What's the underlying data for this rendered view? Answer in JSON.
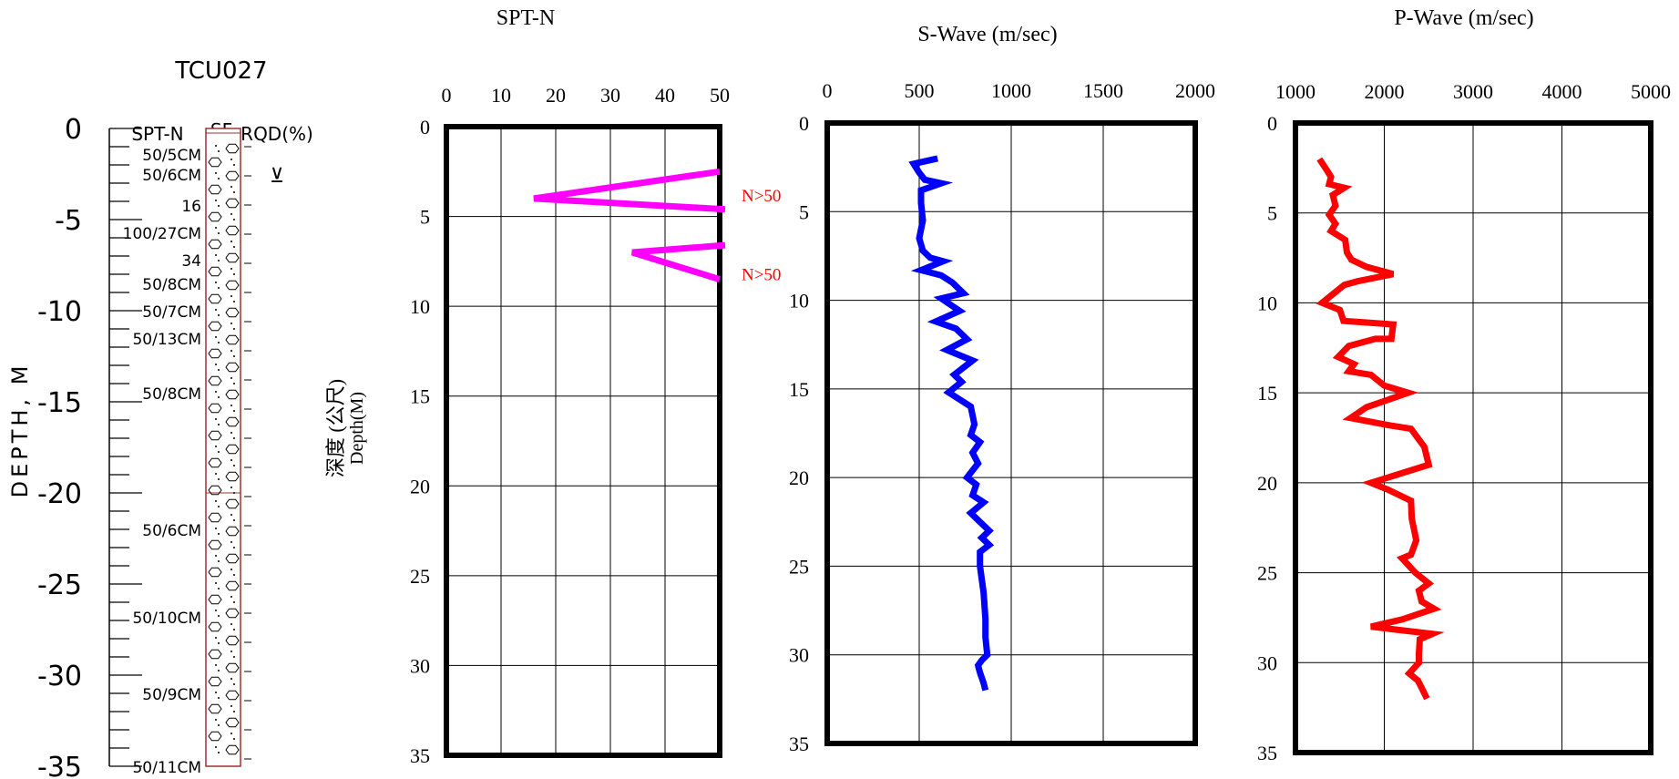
{
  "borehole": {
    "title": "TCU027",
    "depth_axis_label": "DEPTH, M",
    "depth_ticks": [
      "0",
      "-5",
      "-10",
      "-15",
      "-20",
      "-25",
      "-30",
      "-35"
    ],
    "column_headers": {
      "spt": "SPT-N",
      "sf": "SF",
      "rqd": "RQD(%)"
    },
    "water_table_symbol": "⊻",
    "spt_labels": [
      {
        "depth": 1.4,
        "text": "50/5CM"
      },
      {
        "depth": 2.5,
        "text": "50/6CM"
      },
      {
        "depth": 4.2,
        "text": "16"
      },
      {
        "depth": 5.7,
        "text": "100/27CM"
      },
      {
        "depth": 7.2,
        "text": "34"
      },
      {
        "depth": 8.5,
        "text": "50/8CM"
      },
      {
        "depth": 10.0,
        "text": "50/7CM"
      },
      {
        "depth": 11.5,
        "text": "50/13CM"
      },
      {
        "depth": 14.5,
        "text": "50/8CM"
      },
      {
        "depth": 22.0,
        "text": "50/6CM"
      },
      {
        "depth": 26.8,
        "text": "50/10CM"
      },
      {
        "depth": 31.0,
        "text": "50/9CM"
      },
      {
        "depth": 35.0,
        "text": "50/11CM"
      }
    ],
    "colors": {
      "column_border": "#a03030"
    }
  },
  "shared_depth_label": {
    "line1": "深度 (公尺)",
    "line2": "Depth(M)"
  },
  "chart_data": [
    {
      "type": "line",
      "title": "SPT-N",
      "xlim": [
        0,
        50
      ],
      "ylim": [
        0,
        35
      ],
      "x_ticks": [
        0,
        10,
        20,
        30,
        40,
        50
      ],
      "y_ticks": [
        0,
        5,
        10,
        15,
        20,
        25,
        30,
        35
      ],
      "grid": true,
      "series": [
        {
          "color": "#ff00ff",
          "points": [
            [
              50,
              2.5
            ],
            [
              16,
              4.0
            ],
            [
              51,
              4.6
            ]
          ]
        },
        {
          "color": "#ff00ff",
          "points": [
            [
              51,
              6.6
            ],
            [
              34,
              7.0
            ],
            [
              50,
              8.5
            ]
          ]
        }
      ],
      "annotations": [
        {
          "text": "N>50",
          "x": 54,
          "y": 3.8,
          "color": "#ff0000"
        },
        {
          "text": "N>50",
          "x": 54,
          "y": 8.2,
          "color": "#ff0000"
        }
      ]
    },
    {
      "type": "line",
      "title": "S-Wave (m/sec)",
      "xlim": [
        0,
        2000
      ],
      "ylim": [
        0,
        35
      ],
      "x_ticks": [
        0,
        500,
        1000,
        1500,
        2000
      ],
      "y_ticks": [
        0,
        5,
        10,
        15,
        20,
        25,
        30,
        35
      ],
      "grid": true,
      "series": [
        {
          "color": "#0000ff",
          "points": [
            [
              600,
              2
            ],
            [
              470,
              2.3
            ],
            [
              500,
              2.8
            ],
            [
              530,
              3.2
            ],
            [
              620,
              3.4
            ],
            [
              510,
              3.8
            ],
            [
              510,
              4.5
            ],
            [
              520,
              5.5
            ],
            [
              500,
              6.5
            ],
            [
              520,
              7.2
            ],
            [
              560,
              7.6
            ],
            [
              630,
              7.8
            ],
            [
              510,
              8.3
            ],
            [
              620,
              8.6
            ],
            [
              680,
              9
            ],
            [
              740,
              9.6
            ],
            [
              620,
              9.9
            ],
            [
              720,
              10.6
            ],
            [
              590,
              11.2
            ],
            [
              700,
              11.6
            ],
            [
              760,
              12.2
            ],
            [
              650,
              12.8
            ],
            [
              790,
              13.4
            ],
            [
              690,
              14.2
            ],
            [
              730,
              14.6
            ],
            [
              660,
              15.2
            ],
            [
              780,
              16
            ],
            [
              800,
              17
            ],
            [
              780,
              17.6
            ],
            [
              830,
              18
            ],
            [
              790,
              18.6
            ],
            [
              820,
              19.2
            ],
            [
              760,
              20
            ],
            [
              810,
              20.4
            ],
            [
              790,
              21
            ],
            [
              850,
              21.4
            ],
            [
              780,
              22
            ],
            [
              820,
              22.4
            ],
            [
              880,
              23
            ],
            [
              840,
              23.4
            ],
            [
              880,
              23.8
            ],
            [
              830,
              24.2
            ],
            [
              830,
              25
            ],
            [
              850,
              26.5
            ],
            [
              860,
              28
            ],
            [
              860,
              29
            ],
            [
              870,
              30
            ],
            [
              840,
              30.3
            ],
            [
              820,
              30.6
            ],
            [
              830,
              31
            ],
            [
              850,
              31.6
            ],
            [
              860,
              32
            ]
          ]
        }
      ]
    },
    {
      "type": "line",
      "title": "P-Wave (m/sec)",
      "xlim": [
        1000,
        5000
      ],
      "ylim": [
        0,
        35
      ],
      "x_ticks": [
        1000,
        2000,
        3000,
        4000,
        5000
      ],
      "y_ticks": [
        0,
        5,
        10,
        15,
        20,
        25,
        30,
        35
      ],
      "grid": true,
      "series": [
        {
          "color": "#ff0000",
          "points": [
            [
              1270,
              2
            ],
            [
              1350,
              2.6
            ],
            [
              1400,
              3
            ],
            [
              1380,
              3.4
            ],
            [
              1550,
              3.6
            ],
            [
              1420,
              4
            ],
            [
              1450,
              4.6
            ],
            [
              1380,
              5.1
            ],
            [
              1450,
              5.6
            ],
            [
              1400,
              6
            ],
            [
              1560,
              6.5
            ],
            [
              1580,
              7.2
            ],
            [
              1630,
              7.6
            ],
            [
              1800,
              8
            ],
            [
              2100,
              8.4
            ],
            [
              1700,
              8.8
            ],
            [
              1550,
              9
            ],
            [
              1400,
              9.6
            ],
            [
              1300,
              10
            ],
            [
              1500,
              10.4
            ],
            [
              1540,
              11
            ],
            [
              2100,
              11.2
            ],
            [
              2080,
              12
            ],
            [
              1900,
              12
            ],
            [
              1600,
              12.4
            ],
            [
              1480,
              13
            ],
            [
              1660,
              13.4
            ],
            [
              1600,
              13.8
            ],
            [
              1850,
              14
            ],
            [
              2000,
              14.6
            ],
            [
              2270,
              15
            ],
            [
              1800,
              15.8
            ],
            [
              1620,
              16.4
            ],
            [
              2050,
              16.8
            ],
            [
              2300,
              17
            ],
            [
              2450,
              18
            ],
            [
              2500,
              19
            ],
            [
              1850,
              20
            ],
            [
              2050,
              20.4
            ],
            [
              2300,
              21
            ],
            [
              2310,
              22
            ],
            [
              2360,
              23.2
            ],
            [
              2300,
              24
            ],
            [
              2200,
              24.2
            ],
            [
              2350,
              25
            ],
            [
              2500,
              25.6
            ],
            [
              2390,
              26
            ],
            [
              2420,
              26.6
            ],
            [
              2560,
              27
            ],
            [
              2200,
              27.6
            ],
            [
              1850,
              28
            ],
            [
              2540,
              28.4
            ],
            [
              2400,
              28.7
            ],
            [
              2390,
              29.5
            ],
            [
              2390,
              30
            ],
            [
              2280,
              30.6
            ],
            [
              2380,
              31
            ],
            [
              2420,
              31.4
            ],
            [
              2480,
              32
            ]
          ]
        }
      ]
    }
  ]
}
